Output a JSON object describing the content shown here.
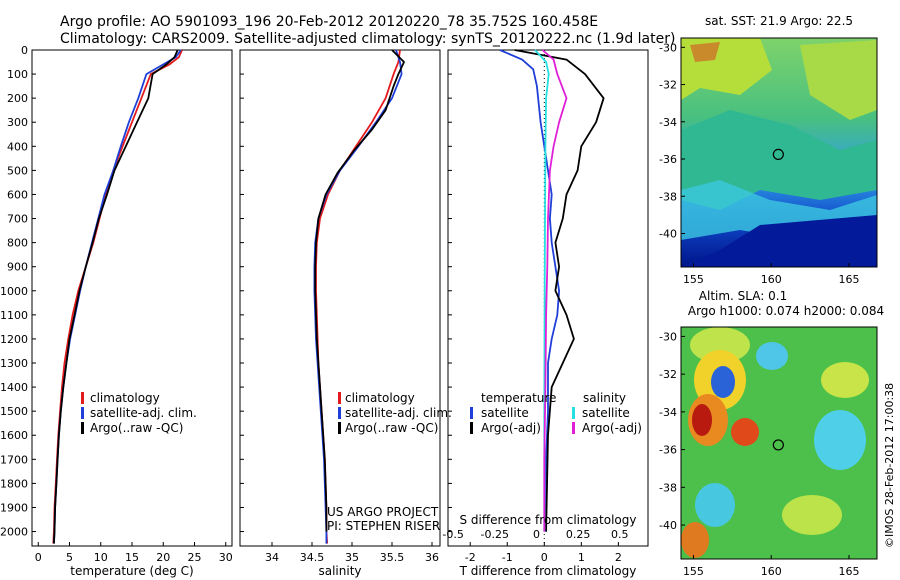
{
  "header": {
    "line1": "Argo profile: AO 5901093_196 20-Feb-2012 20120220_78 35.752S 160.458E",
    "line2": "Climatology: CARS2009. Satellite-adjusted climatology: synTS_20120222.nc (1.9d later)"
  },
  "stamp": "©IMOS 28-Feb-2012 17:00:38",
  "depth_ticks": [
    0,
    100,
    200,
    300,
    400,
    500,
    600,
    700,
    800,
    900,
    1000,
    1100,
    1200,
    1300,
    1400,
    1500,
    1600,
    1700,
    1800,
    1900,
    2000
  ],
  "colors": {
    "climatology": "#e41a1c",
    "satellite": "#1f3fd8",
    "argo": "#000000",
    "sat_sal": "#25e0e0",
    "argo_sal": "#e020d8"
  },
  "legend_items": {
    "clim": "climatology",
    "sat": "satellite-adj. clim.",
    "argo": "Argo(..raw -QC)"
  },
  "panels": {
    "temperature": {
      "xlabel": "temperature (deg C)"
    },
    "salinity": {
      "xlabel": "salinity",
      "note1": "US ARGO PROJECT",
      "note2": "PI: STEPHEN RISER"
    },
    "diff": {
      "xlabel": "T difference from climatology",
      "s_title": "S difference from climatology",
      "leg_temp": "temperature",
      "leg_sal": "salinity",
      "leg_sat": "satellite",
      "leg_argo": "Argo(-adj)"
    }
  },
  "maps": {
    "sst": {
      "title": "sat. SST: 21.9  Argo: 22.5"
    },
    "sla": {
      "title1": "Altim. SLA: 0.1",
      "title2": "Argo h1000: 0.074  h2000: 0.084"
    },
    "lon_ticks": [
      155,
      160,
      165
    ],
    "lat_ticks": [
      -30,
      -32,
      -34,
      -36,
      -38,
      -40
    ],
    "float_position": {
      "lon": 160.458,
      "lat": -35.752
    }
  },
  "chart_data": [
    {
      "type": "line",
      "title": "",
      "xlabel": "temperature (deg C)",
      "ylabel": "",
      "xlim": [
        -1,
        31
      ],
      "ylim": [
        2060,
        0
      ],
      "xticks": [
        0,
        5,
        10,
        15,
        20,
        25,
        30
      ],
      "series": [
        {
          "name": "climatology",
          "values": [
            [
              23,
              0
            ],
            [
              22.5,
              30
            ],
            [
              21,
              60
            ],
            [
              18,
              100
            ],
            [
              16.5,
              200
            ],
            [
              15,
              300
            ],
            [
              13.5,
              400
            ],
            [
              12,
              500
            ],
            [
              10.8,
              600
            ],
            [
              9.8,
              700
            ],
            [
              8.8,
              800
            ],
            [
              7.6,
              900
            ],
            [
              6.4,
              1000
            ],
            [
              5.5,
              1100
            ],
            [
              4.8,
              1200
            ],
            [
              4.2,
              1300
            ],
            [
              3.8,
              1400
            ],
            [
              3.5,
              1500
            ],
            [
              3.2,
              1600
            ],
            [
              3,
              1700
            ],
            [
              2.8,
              1800
            ],
            [
              2.6,
              1900
            ],
            [
              2.5,
              2000
            ],
            [
              2.4,
              2050
            ]
          ]
        },
        {
          "name": "satellite-adj. clim.",
          "values": [
            [
              22.8,
              0
            ],
            [
              22,
              30
            ],
            [
              20,
              60
            ],
            [
              17.3,
              100
            ],
            [
              16,
              200
            ],
            [
              14.5,
              300
            ],
            [
              13.2,
              400
            ],
            [
              12,
              500
            ],
            [
              10.6,
              600
            ],
            [
              9.6,
              700
            ],
            [
              8.6,
              800
            ],
            [
              7.6,
              900
            ],
            [
              6.7,
              1000
            ],
            [
              5.9,
              1100
            ],
            [
              5.1,
              1200
            ],
            [
              4.5,
              1300
            ],
            [
              4,
              1400
            ],
            [
              3.6,
              1500
            ],
            [
              3.3,
              1600
            ],
            [
              3.1,
              1700
            ],
            [
              2.9,
              1800
            ],
            [
              2.7,
              1900
            ],
            [
              2.6,
              2000
            ],
            [
              2.5,
              2050
            ]
          ]
        },
        {
          "name": "Argo(..raw -QC)",
          "values": [
            [
              22.3,
              0
            ],
            [
              21.8,
              30
            ],
            [
              20.5,
              60
            ],
            [
              18.3,
              100
            ],
            [
              17.6,
              200
            ],
            [
              15.8,
              300
            ],
            [
              14,
              400
            ],
            [
              12.2,
              500
            ],
            [
              11,
              600
            ],
            [
              9.7,
              700
            ],
            [
              8.7,
              800
            ],
            [
              7.6,
              900
            ],
            [
              6.6,
              1000
            ],
            [
              5.8,
              1100
            ],
            [
              5,
              1200
            ],
            [
              4.5,
              1300
            ],
            [
              4,
              1400
            ],
            [
              3.6,
              1500
            ],
            [
              3.3,
              1600
            ],
            [
              3.1,
              1700
            ],
            [
              2.9,
              1800
            ],
            [
              2.7,
              1900
            ],
            [
              2.6,
              2000
            ],
            [
              2.5,
              2050
            ]
          ]
        }
      ]
    },
    {
      "type": "line",
      "title": "",
      "xlabel": "salinity",
      "ylabel": "",
      "xlim": [
        33.6,
        36.1
      ],
      "ylim": [
        2060,
        0
      ],
      "xticks": [
        34,
        34.5,
        35,
        35.5,
        36
      ],
      "series": [
        {
          "name": "climatology",
          "values": [
            [
              35.6,
              0
            ],
            [
              35.58,
              50
            ],
            [
              35.52,
              100
            ],
            [
              35.42,
              200
            ],
            [
              35.25,
              300
            ],
            [
              35.05,
              400
            ],
            [
              34.85,
              500
            ],
            [
              34.7,
              600
            ],
            [
              34.6,
              700
            ],
            [
              34.56,
              800
            ],
            [
              34.55,
              900
            ],
            [
              34.55,
              1000
            ],
            [
              34.56,
              1100
            ],
            [
              34.57,
              1200
            ],
            [
              34.58,
              1300
            ],
            [
              34.6,
              1400
            ],
            [
              34.62,
              1500
            ],
            [
              34.64,
              1600
            ],
            [
              34.66,
              1700
            ],
            [
              34.67,
              1800
            ],
            [
              34.68,
              1900
            ],
            [
              34.68,
              2000
            ],
            [
              34.69,
              2050
            ]
          ]
        },
        {
          "name": "satellite-adj. clim.",
          "values": [
            [
              35.55,
              0
            ],
            [
              35.6,
              50
            ],
            [
              35.62,
              100
            ],
            [
              35.5,
              200
            ],
            [
              35.3,
              300
            ],
            [
              35.08,
              400
            ],
            [
              34.85,
              500
            ],
            [
              34.68,
              600
            ],
            [
              34.58,
              700
            ],
            [
              34.54,
              800
            ],
            [
              34.53,
              900
            ],
            [
              34.53,
              1000
            ],
            [
              34.54,
              1100
            ],
            [
              34.55,
              1200
            ],
            [
              34.57,
              1300
            ],
            [
              34.59,
              1400
            ],
            [
              34.61,
              1500
            ],
            [
              34.63,
              1600
            ],
            [
              34.65,
              1700
            ],
            [
              34.66,
              1800
            ],
            [
              34.67,
              1900
            ],
            [
              34.68,
              2000
            ],
            [
              34.68,
              2050
            ]
          ]
        },
        {
          "name": "Argo(..raw -QC)",
          "values": [
            [
              35.5,
              0
            ],
            [
              35.65,
              50
            ],
            [
              35.58,
              100
            ],
            [
              35.52,
              150
            ],
            [
              35.42,
              250
            ],
            [
              35.25,
              330
            ],
            [
              35.02,
              420
            ],
            [
              34.82,
              510
            ],
            [
              34.67,
              600
            ],
            [
              34.58,
              700
            ],
            [
              34.55,
              800
            ],
            [
              34.54,
              900
            ],
            [
              34.54,
              1000
            ],
            [
              34.55,
              1100
            ],
            [
              34.56,
              1200
            ],
            [
              34.58,
              1300
            ],
            [
              34.6,
              1400
            ],
            [
              34.62,
              1500
            ],
            [
              34.64,
              1600
            ],
            [
              34.66,
              1700
            ],
            [
              34.67,
              1800
            ],
            [
              34.68,
              1900
            ],
            [
              34.68,
              2000
            ]
          ]
        }
      ]
    },
    {
      "type": "line",
      "title": "",
      "xlabel": "T difference from climatology",
      "ylabel": "",
      "xlim": [
        -2.6,
        2.8
      ],
      "ylim": [
        2060,
        0
      ],
      "xticks": [
        -2,
        -1,
        0,
        1,
        2
      ],
      "top_ticks": {
        "label": "S difference from climatology",
        "values": [
          "-0.5",
          "-0.25",
          "0",
          "0.25",
          "0.5"
        ]
      },
      "series": [
        {
          "name": "temperature satellite",
          "values": [
            [
              -1.2,
              0
            ],
            [
              -0.6,
              40
            ],
            [
              -0.3,
              80
            ],
            [
              -0.2,
              150
            ],
            [
              -0.1,
              300
            ],
            [
              0.1,
              500
            ],
            [
              0.2,
              600
            ],
            [
              0.15,
              700
            ],
            [
              0.2,
              800
            ],
            [
              0.3,
              900
            ],
            [
              0.4,
              1000
            ],
            [
              0.35,
              1100
            ],
            [
              0.2,
              1200
            ],
            [
              0.1,
              1300
            ],
            [
              0.1,
              1500
            ],
            [
              0.05,
              1700
            ],
            [
              0.05,
              2000
            ]
          ]
        },
        {
          "name": "temperature Argo(-adj)",
          "values": [
            [
              -0.8,
              0
            ],
            [
              0.6,
              40
            ],
            [
              1.1,
              100
            ],
            [
              1.6,
              200
            ],
            [
              1.4,
              300
            ],
            [
              1,
              400
            ],
            [
              0.9,
              500
            ],
            [
              0.6,
              600
            ],
            [
              0.5,
              700
            ],
            [
              0.3,
              800
            ],
            [
              0.4,
              900
            ],
            [
              0.3,
              1000
            ],
            [
              0.6,
              1100
            ],
            [
              0.8,
              1200
            ],
            [
              0.5,
              1300
            ],
            [
              0.2,
              1400
            ],
            [
              0.1,
              1600
            ],
            [
              0.05,
              2000
            ]
          ]
        },
        {
          "name": "salinity satellite",
          "values": [
            [
              -0.25,
              0
            ],
            [
              0.05,
              50
            ],
            [
              0.12,
              100
            ],
            [
              0.05,
              200
            ],
            [
              0.03,
              400
            ],
            [
              0.02,
              700
            ],
            [
              0.01,
              1000
            ],
            [
              0,
              1500
            ],
            [
              0,
              2000
            ]
          ]
        },
        {
          "name": "salinity Argo(-adj)",
          "values": [
            [
              -0.05,
              0
            ],
            [
              0.25,
              40
            ],
            [
              0.35,
              100
            ],
            [
              0.6,
              200
            ],
            [
              0.4,
              300
            ],
            [
              0.25,
              400
            ],
            [
              0.15,
              500
            ],
            [
              0.1,
              700
            ],
            [
              0.08,
              900
            ],
            [
              0.05,
              1100
            ],
            [
              0.03,
              1400
            ],
            [
              0,
              1700
            ],
            [
              0,
              2000
            ]
          ]
        }
      ]
    }
  ]
}
